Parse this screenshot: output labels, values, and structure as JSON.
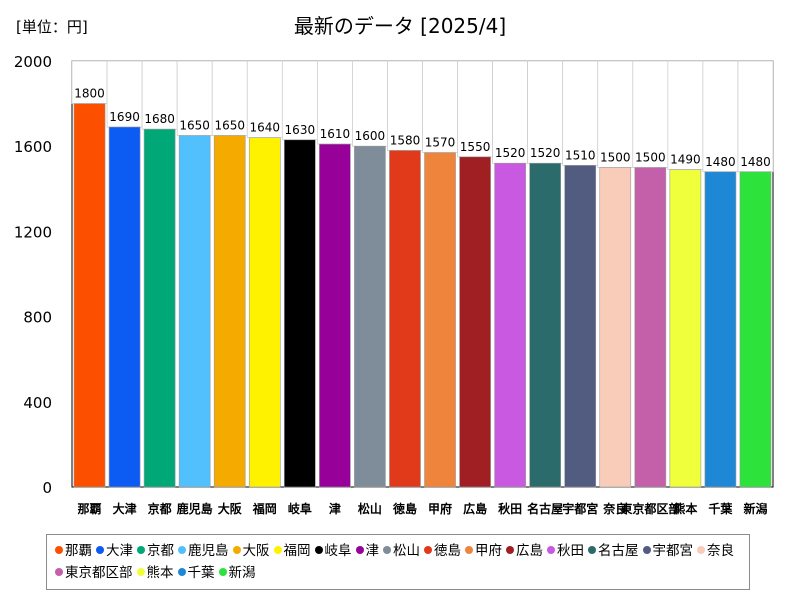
{
  "unit_label": "[単位：円]",
  "chart_data": {
    "type": "bar",
    "title": "最新のデータ [2025/4]",
    "xlabel": "",
    "ylabel": "",
    "ylim": [
      0,
      2000
    ],
    "yticks": [
      0,
      400,
      800,
      1200,
      1600,
      2000
    ],
    "grid": false,
    "legend_position": "bottom",
    "categories": [
      "那覇",
      "大津",
      "京都",
      "鹿児島",
      "大阪",
      "福岡",
      "岐阜",
      "津",
      "松山",
      "徳島",
      "甲府",
      "広島",
      "秋田",
      "名古屋",
      "宇都宮",
      "奈良",
      "東京都区部",
      "熊本",
      "千葉",
      "新潟"
    ],
    "values": [
      1800,
      1690,
      1680,
      1650,
      1650,
      1640,
      1630,
      1610,
      1600,
      1580,
      1570,
      1550,
      1520,
      1520,
      1510,
      1500,
      1500,
      1490,
      1480,
      1480
    ],
    "colors": [
      "#fc4f00",
      "#0c5bf3",
      "#00a878",
      "#52c0fd",
      "#f5aa00",
      "#fff200",
      "#000000",
      "#970099",
      "#7f8c9a",
      "#e03a1b",
      "#ef843c",
      "#a01f22",
      "#c859e0",
      "#2b6b6b",
      "#525c81",
      "#f8ccb9",
      "#c45faa",
      "#efff3b",
      "#1f88d6",
      "#2de23b"
    ]
  }
}
